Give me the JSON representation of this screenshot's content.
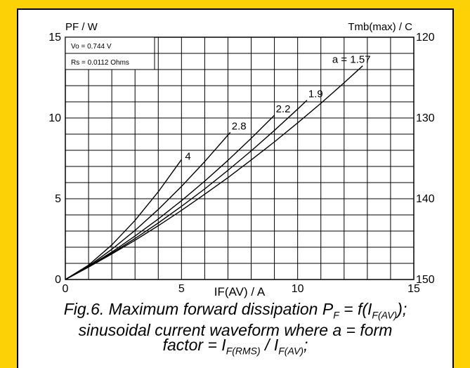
{
  "chart_data": {
    "type": "line",
    "title": "",
    "xlabel": "IF(AV) / A",
    "ylabel": "PF / W",
    "y2label": "Tmb(max) / C",
    "xlim": [
      0,
      15
    ],
    "ylim": [
      0,
      15
    ],
    "y2lim": [
      150,
      120
    ],
    "xticks": [
      "0",
      "5",
      "10",
      "15"
    ],
    "yticks": [
      "0",
      "5",
      "10",
      "15"
    ],
    "y2ticks": [
      "150",
      "140",
      "130",
      "120"
    ],
    "grid": true,
    "legend": "none",
    "params": [
      "Vo = 0.744 V",
      "Rs = 0.0112 Ohms"
    ],
    "series": [
      {
        "name": "4",
        "x": [
          0,
          1,
          2,
          3,
          4,
          5
        ],
        "y": [
          0,
          0.89,
          2.14,
          3.66,
          5.43,
          7.42
        ]
      },
      {
        "name": "2.8",
        "x": [
          0,
          1,
          2,
          3,
          4,
          5,
          6,
          7.1
        ],
        "y": [
          0,
          0.83,
          1.87,
          3.04,
          4.34,
          5.76,
          7.3,
          9.11
        ]
      },
      {
        "name": "2.2",
        "x": [
          0,
          1,
          2,
          3,
          4,
          5,
          6,
          7,
          8,
          9.0
        ],
        "y": [
          0,
          0.8,
          1.7,
          2.69,
          3.75,
          4.88,
          6.09,
          7.38,
          8.74,
          10.17
        ]
      },
      {
        "name": "1.9",
        "x": [
          0,
          1,
          2,
          3,
          4,
          5,
          6,
          7,
          8,
          9,
          10,
          10.4
        ],
        "y": [
          0,
          0.78,
          1.63,
          2.54,
          3.5,
          4.53,
          5.61,
          6.76,
          7.96,
          9.23,
          10.55,
          11.1
        ]
      },
      {
        "name": "a = 1.57",
        "x": [
          0,
          1,
          2,
          3,
          4,
          5,
          6,
          7,
          8,
          9,
          10,
          11,
          12,
          12.8
        ],
        "y": [
          0,
          0.77,
          1.58,
          2.43,
          3.33,
          4.28,
          5.28,
          6.31,
          7.4,
          8.52,
          9.7,
          10.91,
          12.18,
          13.23
        ]
      }
    ],
    "caption": {
      "line1_text": "Fig.6.  Maximum forward dissipation P",
      "line1_sub1": "F",
      "line1_mid": " = f(I",
      "line1_sub2": "F(AV)",
      "line1_end": ");",
      "line2": "sinusoidal current waveform where a = form",
      "line3_text": "factor = I",
      "line3_sub1": "F(RMS)",
      "line3_mid": " / I",
      "line3_sub2": "F(AV)",
      "line3_end": ";"
    }
  }
}
